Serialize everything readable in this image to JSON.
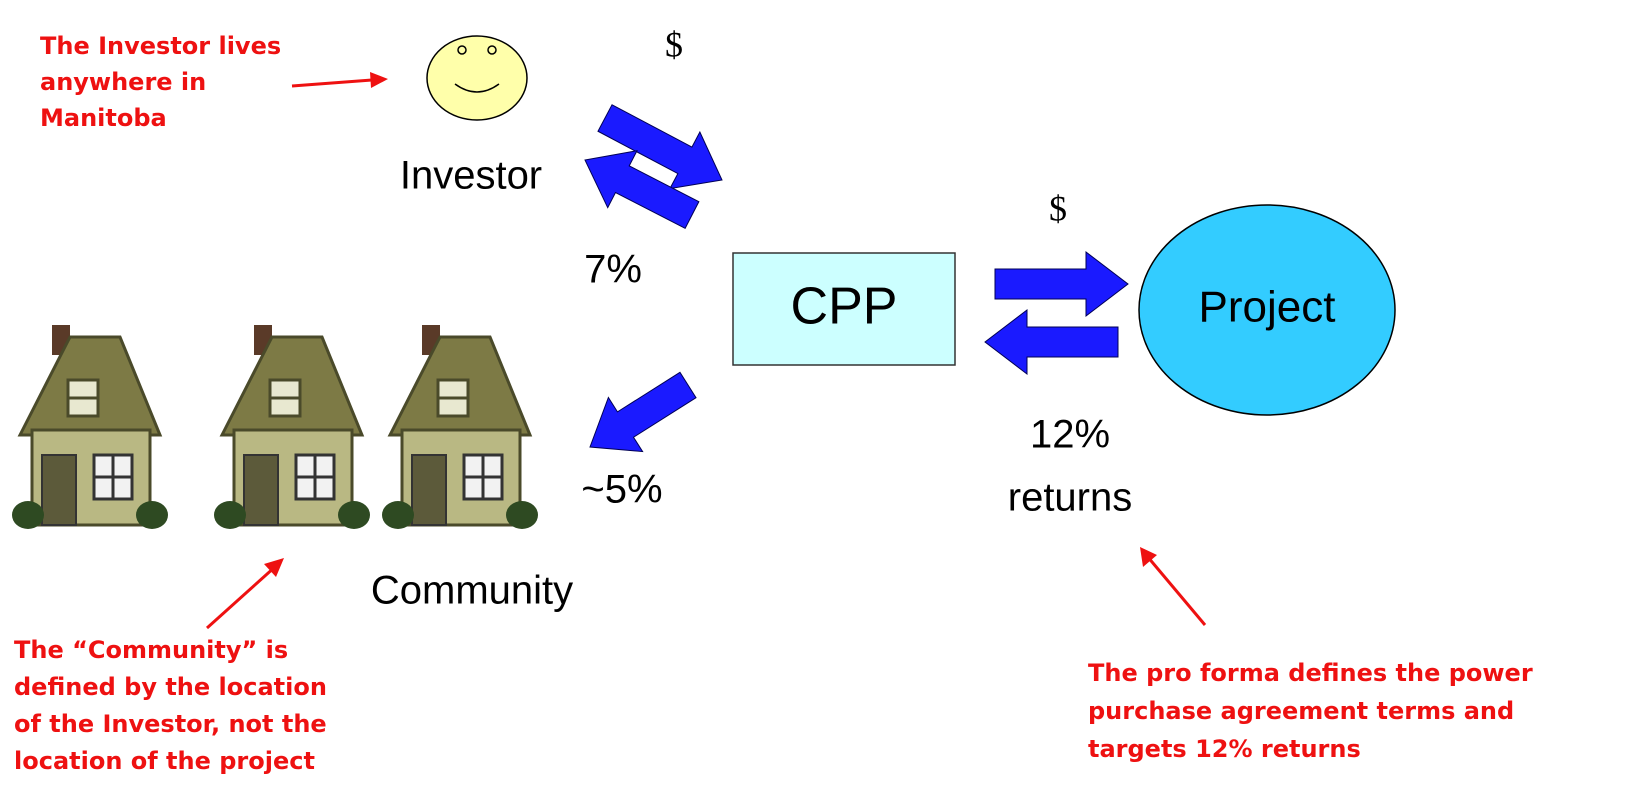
{
  "annotations": [
    {
      "lines": [
        "The Investor lives",
        "anywhere in",
        "Manitoba"
      ]
    },
    {
      "lines": [
        "The “Community” is",
        "defined by the location",
        "of the Investor, not the",
        "location of the project"
      ]
    },
    {
      "lines": [
        "The pro forma defines the power",
        "purchase agreement terms and",
        "targets 12% returns"
      ]
    }
  ],
  "nodes": [
    {
      "label": "Investor"
    },
    {
      "label": "CPP"
    },
    {
      "label": "Project"
    },
    {
      "label": "Community"
    }
  ],
  "flows": [
    {
      "label": "$"
    },
    {
      "label": "7%"
    },
    {
      "label": "~5%"
    },
    {
      "label": "$"
    },
    {
      "lines": [
        "12%",
        "returns"
      ]
    }
  ]
}
